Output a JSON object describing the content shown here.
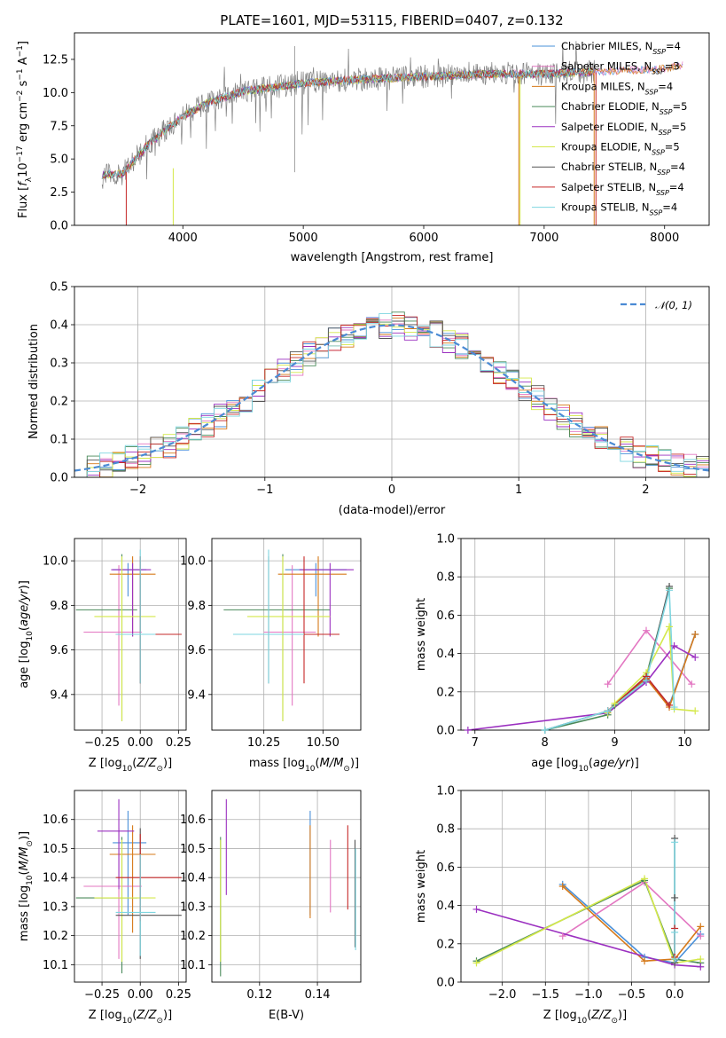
{
  "title": "PLATE=1601, MJD=53115, FIBERID=0407, z=0.132",
  "colors": {
    "Chabrier MILES": "#4a90d9",
    "Salpeter MILES": "#e377c2",
    "Kroupa MILES": "#d67a1a",
    "Chabrier ELODIE": "#4a8a5a",
    "Salpeter ELODIE": "#9b30c0",
    "Kroupa ELODIE": "#d4e84a",
    "Chabrier STELIB": "#555555",
    "Salpeter STELIB": "#c62828",
    "Kroupa STELIB": "#7ed6e0",
    "data": "#808080",
    "gauss": "#4a8ad4"
  },
  "legend_spectrum": [
    {
      "label": "Chabrier MILES, N",
      "sub": "SSP",
      "tail": "=4"
    },
    {
      "label": "Salpeter MILES, N",
      "sub": "SSP",
      "tail": "=3"
    },
    {
      "label": "Kroupa MILES, N",
      "sub": "SSP",
      "tail": "=4"
    },
    {
      "label": "Chabrier ELODIE, N",
      "sub": "SSP",
      "tail": "=5"
    },
    {
      "label": "Salpeter ELODIE, N",
      "sub": "SSP",
      "tail": "=5"
    },
    {
      "label": "Kroupa ELODIE, N",
      "sub": "SSP",
      "tail": "=5"
    },
    {
      "label": "Chabrier STELIB, N",
      "sub": "SSP",
      "tail": "=4"
    },
    {
      "label": "Salpeter STELIB, N",
      "sub": "SSP",
      "tail": "=4"
    },
    {
      "label": "Kroupa STELIB, N",
      "sub": "SSP",
      "tail": "=4"
    }
  ],
  "legend_hist": "𝒩(0, 1)",
  "chart_data": [
    {
      "type": "line",
      "xlabel": "wavelength [Angstrom, rest frame]",
      "ylabel": "Flux [f_λ 10^-17 erg cm^-2 s^-1 A^-1]",
      "xlim": [
        3100,
        8370
      ],
      "ylim": [
        0,
        14.5
      ],
      "xticks": [
        "4000",
        "5000",
        "6000",
        "7000",
        "8000"
      ],
      "yticks": [
        "0.0",
        "2.5",
        "5.0",
        "7.5",
        "10.0",
        "12.5"
      ],
      "spectrum_anchor_points": [
        [
          3330,
          3.8
        ],
        [
          3500,
          3.9
        ],
        [
          3700,
          6.0
        ],
        [
          3900,
          7.5
        ],
        [
          4000,
          8.2
        ],
        [
          4200,
          9.2
        ],
        [
          4500,
          10.1
        ],
        [
          5000,
          10.7
        ],
        [
          5500,
          11.0
        ],
        [
          6000,
          11.2
        ],
        [
          6500,
          11.4
        ],
        [
          7000,
          11.4
        ],
        [
          7500,
          11.6
        ],
        [
          8000,
          11.8
        ],
        [
          8150,
          12.1
        ]
      ]
    },
    {
      "type": "area",
      "xlabel": "(data-model)/error",
      "ylabel": "Normed distribution",
      "xlim": [
        -2.5,
        2.5
      ],
      "ylim": [
        0,
        0.5
      ],
      "xticks": [
        "−2",
        "−1",
        "0",
        "1",
        "2"
      ],
      "yticks": [
        "0.0",
        "0.1",
        "0.2",
        "0.3",
        "0.4",
        "0.5"
      ],
      "series": [
        {
          "name": "𝒩(0, 1)",
          "kind": "gaussian",
          "mu": 0,
          "sigma": 1
        }
      ]
    },
    {
      "type": "scatter",
      "xlabel": "Z [log10(Z/Z⊙)]",
      "ylabel": "age [log10(age/yr)]",
      "xlim": [
        -0.43,
        0.3
      ],
      "ylim": [
        9.24,
        10.1
      ],
      "xticks": [
        "−0.25",
        "0.00",
        "0.25"
      ],
      "yticks": [
        "9.4",
        "9.6",
        "9.8",
        "10.0"
      ],
      "points": [
        {
          "model": "Chabrier MILES",
          "x": -0.08,
          "xerr": [
            0.1,
            0.12
          ],
          "y": 9.96,
          "yerr": [
            0.12,
            0.03
          ]
        },
        {
          "model": "Salpeter MILES",
          "x": -0.14,
          "xerr": [
            0.23,
            0.15
          ],
          "y": 9.68,
          "yerr": [
            0.33,
            0.3
          ]
        },
        {
          "model": "Kroupa MILES",
          "x": -0.05,
          "xerr": [
            0.15,
            0.15
          ],
          "y": 9.94,
          "yerr": [
            0.28,
            0.08
          ]
        },
        {
          "model": "Chabrier ELODIE",
          "x": -0.12,
          "xerr": [
            0.3,
            0.1
          ],
          "y": 9.78,
          "yerr": [
            0.5,
            0.25
          ]
        },
        {
          "model": "Salpeter ELODIE",
          "x": -0.05,
          "xerr": [
            0.14,
            0.12
          ],
          "y": 9.96,
          "yerr": [
            0.3,
            0.03
          ]
        },
        {
          "model": "Kroupa ELODIE",
          "x": -0.12,
          "xerr": [
            0.18,
            0.22
          ],
          "y": 9.75,
          "yerr": [
            0.47,
            0.27
          ]
        },
        {
          "model": "Chabrier STELIB",
          "x": 0.0,
          "xerr": [
            0.16,
            0.27
          ],
          "y": 9.67,
          "yerr": [
            0.22,
            0.35
          ]
        },
        {
          "model": "Salpeter STELIB",
          "x": 0.0,
          "xerr": [
            0.16,
            0.27
          ],
          "y": 9.67,
          "yerr": [
            0.22,
            0.35
          ]
        },
        {
          "model": "Kroupa STELIB",
          "x": 0.0,
          "xerr": [
            0.16,
            0.1
          ],
          "y": 9.67,
          "yerr": [
            0.22,
            0.38
          ]
        }
      ]
    },
    {
      "type": "scatter",
      "xlabel": "mass [log10(M/M⊙)]",
      "ylabel": "",
      "xlim": [
        10.03,
        10.66
      ],
      "ylim": [
        9.24,
        10.1
      ],
      "xticks": [
        "10.25",
        "10.50"
      ],
      "yticks": [
        "9.4",
        "9.6",
        "9.8",
        "10.0"
      ],
      "points": [
        {
          "model": "Chabrier MILES",
          "x": 10.47,
          "xerr": [
            0.13,
            0.13
          ],
          "y": 9.96,
          "yerr": [
            0.12,
            0.03
          ]
        },
        {
          "model": "Salpeter MILES",
          "x": 10.37,
          "xerr": [
            0.12,
            0.1
          ],
          "y": 9.68,
          "yerr": [
            0.33,
            0.3
          ]
        },
        {
          "model": "Kroupa MILES",
          "x": 10.48,
          "xerr": [
            0.17,
            0.12
          ],
          "y": 9.94,
          "yerr": [
            0.28,
            0.08
          ]
        },
        {
          "model": "Chabrier ELODIE",
          "x": 10.33,
          "xerr": [
            0.25,
            0.2
          ],
          "y": 9.78,
          "yerr": [
            0.5,
            0.25
          ]
        },
        {
          "model": "Salpeter ELODIE",
          "x": 10.53,
          "xerr": [
            0.13,
            0.1
          ],
          "y": 9.96,
          "yerr": [
            0.3,
            0.03
          ]
        },
        {
          "model": "Kroupa ELODIE",
          "x": 10.33,
          "xerr": [
            0.15,
            0.2
          ],
          "y": 9.75,
          "yerr": [
            0.47,
            0.27
          ]
        },
        {
          "model": "Chabrier STELIB",
          "x": 10.27,
          "xerr": [
            0.15,
            0.3
          ],
          "y": 9.67,
          "yerr": [
            0.22,
            0.35
          ]
        },
        {
          "model": "Salpeter STELIB",
          "x": 10.42,
          "xerr": [
            0.15,
            0.15
          ],
          "y": 9.67,
          "yerr": [
            0.22,
            0.35
          ]
        },
        {
          "model": "Kroupa STELIB",
          "x": 10.27,
          "xerr": [
            0.15,
            0.15
          ],
          "y": 9.67,
          "yerr": [
            0.22,
            0.38
          ]
        }
      ]
    },
    {
      "type": "line",
      "xlabel": "age [log10(age/yr)]",
      "ylabel": "mass weight",
      "xlim": [
        6.8,
        10.35
      ],
      "ylim": [
        0,
        1
      ],
      "xticks": [
        "7",
        "8",
        "9",
        "10"
      ],
      "yticks": [
        "0.0",
        "0.2",
        "0.4",
        "0.6",
        "0.8",
        "1.0"
      ],
      "series": [
        {
          "model": "Chabrier MILES",
          "x": [
            8.9,
            9.45,
            9.78,
            10.15
          ],
          "y": [
            0.1,
            0.28,
            0.13,
            0.5
          ]
        },
        {
          "model": "Salpeter MILES",
          "x": [
            8.9,
            9.45,
            10.1
          ],
          "y": [
            0.24,
            0.52,
            0.24
          ]
        },
        {
          "model": "Kroupa MILES",
          "x": [
            8.9,
            9.45,
            9.78,
            10.15
          ],
          "y": [
            0.1,
            0.27,
            0.12,
            0.5
          ]
        },
        {
          "model": "Chabrier ELODIE",
          "x": [
            8.0,
            8.9,
            9.0,
            9.45,
            9.78
          ],
          "y": [
            0.0,
            0.08,
            0.13,
            0.28,
            0.74
          ]
        },
        {
          "model": "Salpeter ELODIE",
          "x": [
            6.9,
            8.9,
            9.45,
            9.85,
            10.15
          ],
          "y": [
            0.0,
            0.09,
            0.25,
            0.44,
            0.38
          ]
        },
        {
          "model": "Kroupa ELODIE",
          "x": [
            8.9,
            9.0,
            9.45,
            9.78,
            9.85,
            10.15
          ],
          "y": [
            0.09,
            0.14,
            0.3,
            0.54,
            0.11,
            0.1
          ]
        },
        {
          "model": "Chabrier STELIB",
          "x": [
            8.0,
            8.9,
            9.45,
            9.78
          ],
          "y": [
            0.0,
            0.1,
            0.26,
            0.75
          ]
        },
        {
          "model": "Salpeter STELIB",
          "x": [
            8.9,
            9.45,
            9.78
          ],
          "y": [
            0.1,
            0.28,
            0.13
          ]
        },
        {
          "model": "Kroupa STELIB",
          "x": [
            8.0,
            8.9,
            9.45,
            9.78,
            9.85
          ],
          "y": [
            0.0,
            0.1,
            0.26,
            0.73,
            0.12
          ]
        }
      ]
    },
    {
      "type": "scatter",
      "xlabel": "Z [log10(Z/Z⊙)]",
      "ylabel": "mass [log10(M/M⊙)]",
      "xlim": [
        -0.43,
        0.3
      ],
      "ylim": [
        10.04,
        10.7
      ],
      "xticks": [
        "−0.25",
        "0.00",
        "0.25"
      ],
      "yticks": [
        "10.1",
        "10.2",
        "10.3",
        "10.4",
        "10.5",
        "10.6"
      ],
      "points": [
        {
          "model": "Chabrier MILES",
          "x": -0.08,
          "xerr": [
            0.1,
            0.12
          ],
          "y": 10.52,
          "yerr": [
            0.25,
            0.11
          ]
        },
        {
          "model": "Salpeter MILES",
          "x": -0.14,
          "xerr": [
            0.23,
            0.15
          ],
          "y": 10.37,
          "yerr": [
            0.25,
            0.2
          ]
        },
        {
          "model": "Kroupa MILES",
          "x": -0.05,
          "xerr": [
            0.15,
            0.15
          ],
          "y": 10.48,
          "yerr": [
            0.27,
            0.1
          ]
        },
        {
          "model": "Chabrier ELODIE",
          "x": -0.12,
          "xerr": [
            0.3,
            0.1
          ],
          "y": 10.33,
          "yerr": [
            0.26,
            0.21
          ]
        },
        {
          "model": "Salpeter ELODIE",
          "x": -0.14,
          "xerr": [
            0.14,
            0.1
          ],
          "y": 10.56,
          "yerr": [
            0.2,
            0.11
          ]
        },
        {
          "model": "Kroupa ELODIE",
          "x": -0.12,
          "xerr": [
            0.18,
            0.22
          ],
          "y": 10.33,
          "yerr": [
            0.22,
            0.2
          ]
        },
        {
          "model": "Chabrier STELIB",
          "x": 0.0,
          "xerr": [
            0.16,
            0.27
          ],
          "y": 10.27,
          "yerr": [
            0.15,
            0.3
          ]
        },
        {
          "model": "Salpeter STELIB",
          "x": 0.0,
          "xerr": [
            0.16,
            0.27
          ],
          "y": 10.4,
          "yerr": [
            0.15,
            0.15
          ]
        },
        {
          "model": "Kroupa STELIB",
          "x": 0.0,
          "xerr": [
            0.16,
            0.1
          ],
          "y": 10.28,
          "yerr": [
            0.15,
            0.2
          ]
        }
      ]
    },
    {
      "type": "scatter",
      "xlabel": "E(B-V)",
      "ylabel": "",
      "xlim": [
        0.1035,
        0.155
      ],
      "ylim": [
        10.04,
        10.7
      ],
      "xticks": [
        "0.12",
        "0.14"
      ],
      "yticks": [
        "10.1",
        "10.2",
        "10.3",
        "10.4",
        "10.5",
        "10.6"
      ],
      "points": [
        {
          "model": "Chabrier MILES",
          "x": 0.1375,
          "y": 10.52,
          "yerr": [
            0.25,
            0.11
          ]
        },
        {
          "model": "Salpeter MILES",
          "x": 0.1445,
          "y": 10.37,
          "yerr": [
            0.09,
            0.16
          ]
        },
        {
          "model": "Kroupa MILES",
          "x": 0.1375,
          "y": 10.48,
          "yerr": [
            0.22,
            0.1
          ]
        },
        {
          "model": "Chabrier ELODIE",
          "x": 0.1065,
          "y": 10.33,
          "yerr": [
            0.27,
            0.21
          ]
        },
        {
          "model": "Salpeter ELODIE",
          "x": 0.1085,
          "y": 10.56,
          "yerr": [
            0.22,
            0.11
          ]
        },
        {
          "model": "Kroupa ELODIE",
          "x": 0.1065,
          "y": 10.33,
          "yerr": [
            0.22,
            0.2
          ]
        },
        {
          "model": "Chabrier STELIB",
          "x": 0.153,
          "y": 10.35,
          "yerr": [
            0.19,
            0.18
          ]
        },
        {
          "model": "Salpeter STELIB",
          "x": 0.1505,
          "y": 10.47,
          "yerr": [
            0.18,
            0.11
          ]
        },
        {
          "model": "Kroupa STELIB",
          "x": 0.1532,
          "y": 10.3,
          "yerr": [
            0.15,
            0.2
          ]
        }
      ]
    },
    {
      "type": "line",
      "xlabel": "Z [log10(Z/Z⊙)]",
      "ylabel": "mass weight",
      "xlim": [
        -2.48,
        0.4
      ],
      "ylim": [
        0,
        1
      ],
      "xticks": [
        "−2.0",
        "−1.5",
        "−1.0",
        "−0.5",
        "0.0"
      ],
      "yticks": [
        "0.0",
        "0.2",
        "0.4",
        "0.6",
        "0.8",
        "1.0"
      ],
      "series": [
        {
          "model": "Chabrier MILES",
          "x": [
            -1.3,
            -0.35,
            0.0,
            0.3
          ],
          "y": [
            0.51,
            0.13,
            0.1,
            0.25
          ]
        },
        {
          "model": "Salpeter MILES",
          "x": [
            -1.3,
            -0.35,
            0.3
          ],
          "y": [
            0.24,
            0.52,
            0.24
          ]
        },
        {
          "model": "Kroupa MILES",
          "x": [
            -1.3,
            -0.35,
            0.0,
            0.3
          ],
          "y": [
            0.5,
            0.11,
            0.12,
            0.29
          ]
        },
        {
          "model": "Chabrier ELODIE",
          "x": [
            -2.3,
            -0.35,
            0.0,
            0.3
          ],
          "y": [
            0.11,
            0.53,
            0.12,
            0.1
          ]
        },
        {
          "model": "Salpeter ELODIE",
          "x": [
            -2.3,
            0.0,
            0.3
          ],
          "y": [
            0.38,
            0.09,
            0.08
          ]
        },
        {
          "model": "Kroupa ELODIE",
          "x": [
            -2.3,
            -0.35,
            0.0,
            0.3
          ],
          "y": [
            0.1,
            0.54,
            0.1,
            0.12
          ]
        },
        {
          "model": "Chabrier STELIB",
          "x": [
            0.0,
            0.0,
            0.0
          ],
          "y": [
            0.1,
            0.44,
            0.75
          ]
        },
        {
          "model": "Salpeter STELIB",
          "x": [
            0.0,
            0.0
          ],
          "y": [
            0.13,
            0.28
          ]
        },
        {
          "model": "Kroupa STELIB",
          "x": [
            0.0,
            0.0,
            0.0
          ],
          "y": [
            0.12,
            0.26,
            0.73
          ]
        }
      ]
    }
  ]
}
